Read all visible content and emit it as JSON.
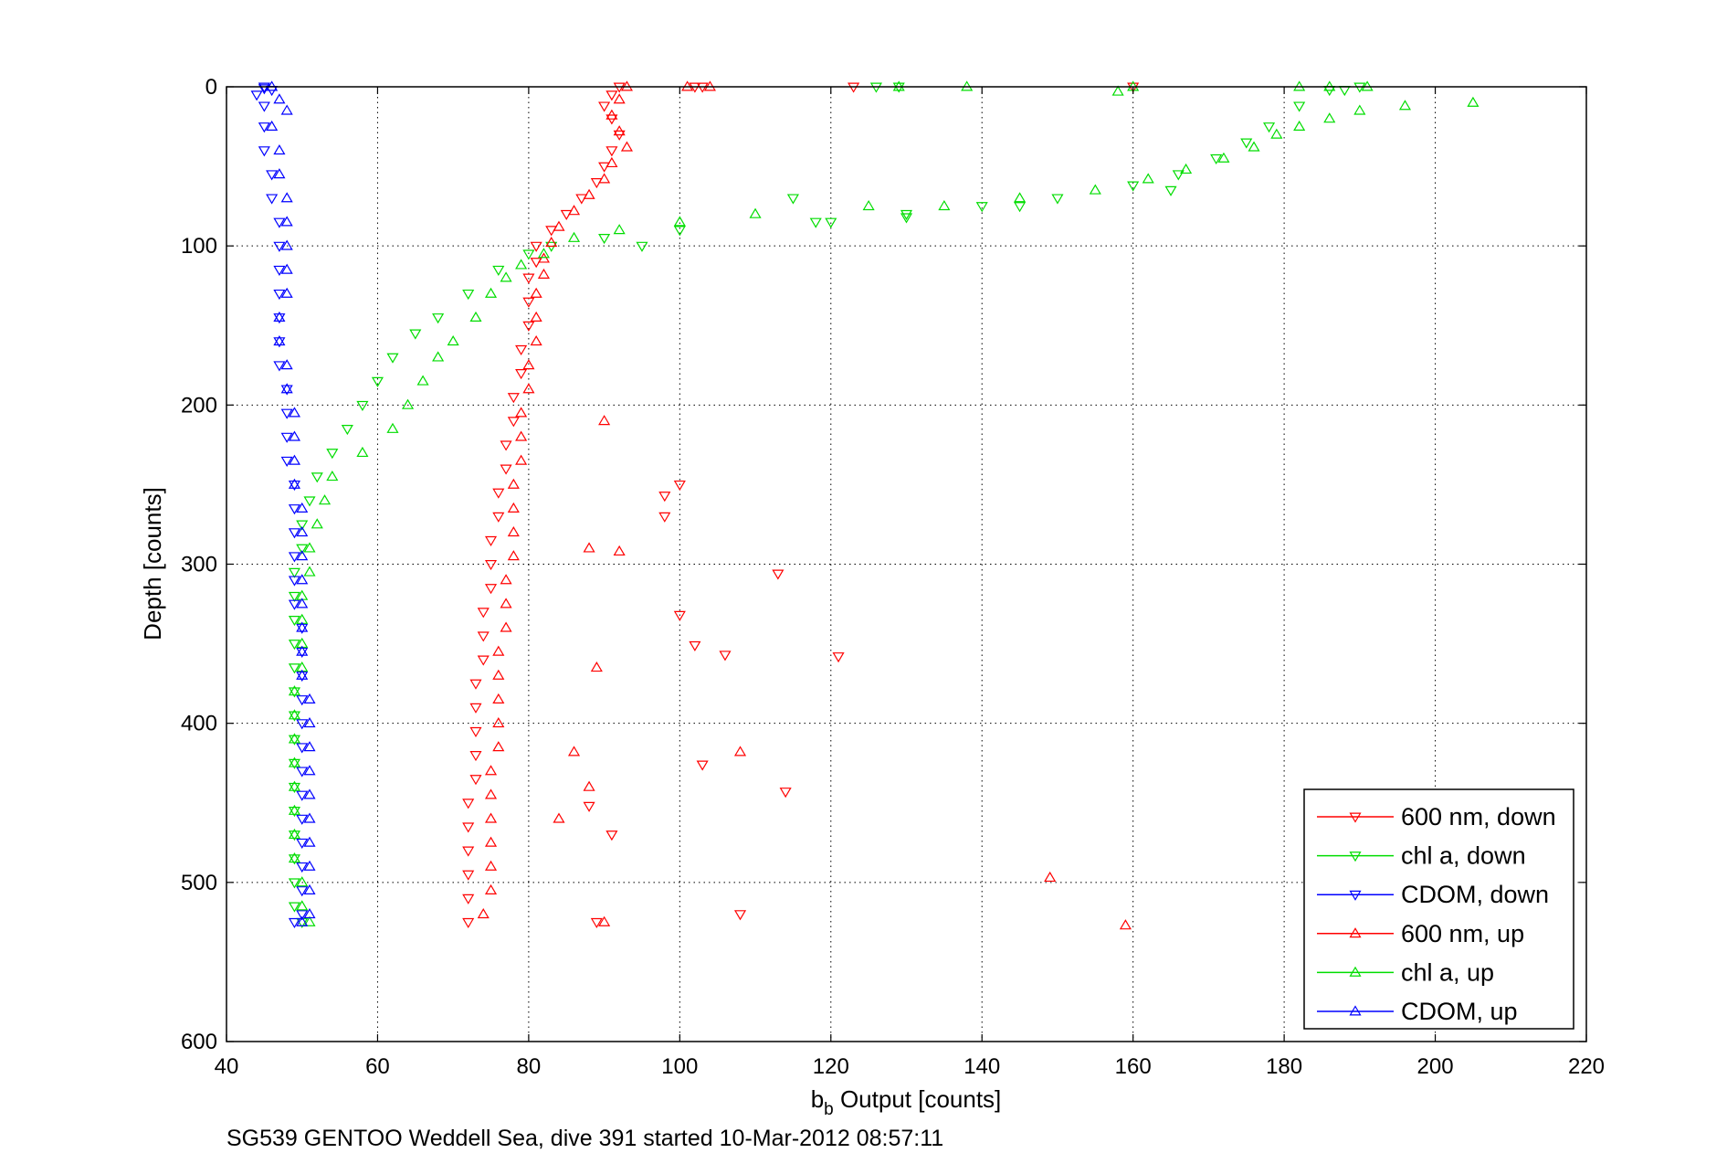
{
  "caption": "SG539 GENTOO Weddell Sea, dive 391 started 10-Mar-2012 08:57:11",
  "chart_data": {
    "type": "scatter",
    "xlabel_base": "b",
    "xlabel_sub": "b",
    "xlabel_rest": " Output [counts]",
    "ylabel": "Depth [counts]",
    "xlim": [
      40,
      220
    ],
    "ylim": [
      0,
      600
    ],
    "y_reversed": true,
    "grid": true,
    "legend_position": "bottom-right",
    "xticks": [
      "40",
      "60",
      "80",
      "100",
      "120",
      "140",
      "160",
      "180",
      "200",
      "220"
    ],
    "yticks": [
      "0",
      "100",
      "200",
      "300",
      "400",
      "500",
      "600"
    ],
    "series": [
      {
        "name": "600 nm, down",
        "color": "#ff0000",
        "marker": "triangle-down",
        "points": [
          [
            92,
            0
          ],
          [
            91,
            5
          ],
          [
            90,
            12
          ],
          [
            91,
            20
          ],
          [
            92,
            30
          ],
          [
            91,
            40
          ],
          [
            90,
            50
          ],
          [
            89,
            60
          ],
          [
            87,
            70
          ],
          [
            85,
            80
          ],
          [
            83,
            90
          ],
          [
            81,
            100
          ],
          [
            81,
            110
          ],
          [
            80,
            120
          ],
          [
            80,
            135
          ],
          [
            80,
            150
          ],
          [
            79,
            165
          ],
          [
            79,
            180
          ],
          [
            78,
            195
          ],
          [
            78,
            210
          ],
          [
            77,
            225
          ],
          [
            77,
            240
          ],
          [
            76,
            255
          ],
          [
            76,
            270
          ],
          [
            75,
            285
          ],
          [
            75,
            300
          ],
          [
            75,
            315
          ],
          [
            74,
            330
          ],
          [
            74,
            345
          ],
          [
            74,
            360
          ],
          [
            73,
            375
          ],
          [
            73,
            390
          ],
          [
            73,
            405
          ],
          [
            73,
            420
          ],
          [
            73,
            435
          ],
          [
            72,
            450
          ],
          [
            72,
            465
          ],
          [
            72,
            480
          ],
          [
            72,
            495
          ],
          [
            72,
            510
          ],
          [
            72,
            525
          ],
          [
            102,
            0
          ],
          [
            103,
            0
          ],
          [
            123,
            0
          ],
          [
            160,
            0
          ],
          [
            100,
            250
          ],
          [
            98,
            257
          ],
          [
            98,
            270
          ],
          [
            113,
            306
          ],
          [
            100,
            332
          ],
          [
            102,
            351
          ],
          [
            106,
            357
          ],
          [
            121,
            358
          ],
          [
            103,
            426
          ],
          [
            114,
            443
          ],
          [
            108,
            520
          ],
          [
            89,
            525
          ],
          [
            91,
            470
          ],
          [
            88,
            452
          ]
        ]
      },
      {
        "name": "chl a, down",
        "color": "#00dd00",
        "marker": "triangle-down",
        "points": [
          [
            190,
            0
          ],
          [
            186,
            2
          ],
          [
            182,
            12
          ],
          [
            178,
            25
          ],
          [
            175,
            35
          ],
          [
            171,
            45
          ],
          [
            166,
            55
          ],
          [
            160,
            62
          ],
          [
            150,
            70
          ],
          [
            140,
            75
          ],
          [
            130,
            80
          ],
          [
            120,
            85
          ],
          [
            100,
            90
          ],
          [
            90,
            95
          ],
          [
            83,
            100
          ],
          [
            80,
            105
          ],
          [
            76,
            115
          ],
          [
            72,
            130
          ],
          [
            68,
            145
          ],
          [
            65,
            155
          ],
          [
            62,
            170
          ],
          [
            60,
            185
          ],
          [
            58,
            200
          ],
          [
            56,
            215
          ],
          [
            54,
            230
          ],
          [
            52,
            245
          ],
          [
            51,
            260
          ],
          [
            50,
            275
          ],
          [
            50,
            290
          ],
          [
            49,
            305
          ],
          [
            49,
            320
          ],
          [
            49,
            335
          ],
          [
            49,
            350
          ],
          [
            49,
            365
          ],
          [
            49,
            380
          ],
          [
            49,
            395
          ],
          [
            49,
            410
          ],
          [
            49,
            425
          ],
          [
            49,
            440
          ],
          [
            49,
            455
          ],
          [
            49,
            470
          ],
          [
            49,
            485
          ],
          [
            49,
            500
          ],
          [
            49,
            515
          ],
          [
            50,
            525
          ],
          [
            126,
            0
          ],
          [
            129,
            0
          ],
          [
            115,
            70
          ],
          [
            118,
            85
          ],
          [
            95,
            100
          ],
          [
            130,
            82
          ],
          [
            145,
            75
          ],
          [
            165,
            65
          ],
          [
            188,
            2
          ]
        ]
      },
      {
        "name": "CDOM, down",
        "color": "#0000ff",
        "marker": "triangle-down",
        "points": [
          [
            45,
            0
          ],
          [
            44,
            5
          ],
          [
            45,
            12
          ],
          [
            45,
            25
          ],
          [
            45,
            40
          ],
          [
            46,
            55
          ],
          [
            46,
            70
          ],
          [
            47,
            85
          ],
          [
            47,
            100
          ],
          [
            47,
            115
          ],
          [
            47,
            130
          ],
          [
            47,
            145
          ],
          [
            47,
            160
          ],
          [
            47,
            175
          ],
          [
            48,
            190
          ],
          [
            48,
            205
          ],
          [
            48,
            220
          ],
          [
            48,
            235
          ],
          [
            49,
            250
          ],
          [
            49,
            265
          ],
          [
            49,
            280
          ],
          [
            49,
            295
          ],
          [
            49,
            310
          ],
          [
            49,
            325
          ],
          [
            50,
            340
          ],
          [
            50,
            355
          ],
          [
            50,
            370
          ],
          [
            50,
            385
          ],
          [
            50,
            400
          ],
          [
            50,
            415
          ],
          [
            50,
            430
          ],
          [
            50,
            445
          ],
          [
            50,
            460
          ],
          [
            50,
            475
          ],
          [
            50,
            490
          ],
          [
            50,
            505
          ],
          [
            50,
            520
          ],
          [
            49,
            525
          ],
          [
            45,
            1
          ],
          [
            46,
            2
          ]
        ]
      },
      {
        "name": "600 nm, up",
        "color": "#ff0000",
        "marker": "triangle-up",
        "points": [
          [
            93,
            0
          ],
          [
            92,
            8
          ],
          [
            91,
            18
          ],
          [
            92,
            28
          ],
          [
            93,
            38
          ],
          [
            91,
            48
          ],
          [
            90,
            58
          ],
          [
            88,
            68
          ],
          [
            86,
            78
          ],
          [
            84,
            88
          ],
          [
            83,
            98
          ],
          [
            82,
            108
          ],
          [
            82,
            118
          ],
          [
            81,
            130
          ],
          [
            81,
            145
          ],
          [
            81,
            160
          ],
          [
            80,
            175
          ],
          [
            80,
            190
          ],
          [
            79,
            205
          ],
          [
            79,
            220
          ],
          [
            79,
            235
          ],
          [
            78,
            250
          ],
          [
            78,
            265
          ],
          [
            78,
            280
          ],
          [
            78,
            295
          ],
          [
            77,
            310
          ],
          [
            77,
            325
          ],
          [
            77,
            340
          ],
          [
            76,
            355
          ],
          [
            76,
            370
          ],
          [
            76,
            385
          ],
          [
            76,
            400
          ],
          [
            76,
            415
          ],
          [
            75,
            430
          ],
          [
            75,
            445
          ],
          [
            75,
            460
          ],
          [
            75,
            475
          ],
          [
            75,
            490
          ],
          [
            75,
            505
          ],
          [
            74,
            520
          ],
          [
            101,
            0
          ],
          [
            104,
            0
          ],
          [
            88,
            290
          ],
          [
            92,
            292
          ],
          [
            90,
            210
          ],
          [
            89,
            365
          ],
          [
            86,
            418
          ],
          [
            84,
            460
          ],
          [
            88,
            440
          ],
          [
            108,
            418
          ],
          [
            149,
            497
          ],
          [
            159,
            527
          ],
          [
            90,
            525
          ]
        ]
      },
      {
        "name": "chl a, up",
        "color": "#00dd00",
        "marker": "triangle-up",
        "points": [
          [
            205,
            10
          ],
          [
            196,
            12
          ],
          [
            190,
            15
          ],
          [
            186,
            20
          ],
          [
            182,
            25
          ],
          [
            179,
            30
          ],
          [
            176,
            38
          ],
          [
            172,
            45
          ],
          [
            167,
            52
          ],
          [
            162,
            58
          ],
          [
            155,
            65
          ],
          [
            145,
            70
          ],
          [
            135,
            75
          ],
          [
            125,
            75
          ],
          [
            110,
            80
          ],
          [
            100,
            85
          ],
          [
            92,
            90
          ],
          [
            86,
            95
          ],
          [
            82,
            105
          ],
          [
            79,
            112
          ],
          [
            77,
            120
          ],
          [
            75,
            130
          ],
          [
            73,
            145
          ],
          [
            70,
            160
          ],
          [
            68,
            170
          ],
          [
            66,
            185
          ],
          [
            64,
            200
          ],
          [
            62,
            215
          ],
          [
            58,
            230
          ],
          [
            54,
            245
          ],
          [
            53,
            260
          ],
          [
            52,
            275
          ],
          [
            51,
            290
          ],
          [
            51,
            305
          ],
          [
            50,
            320
          ],
          [
            50,
            335
          ],
          [
            50,
            350
          ],
          [
            50,
            365
          ],
          [
            49,
            380
          ],
          [
            49,
            395
          ],
          [
            49,
            410
          ],
          [
            49,
            425
          ],
          [
            49,
            440
          ],
          [
            49,
            455
          ],
          [
            49,
            470
          ],
          [
            49,
            485
          ],
          [
            50,
            500
          ],
          [
            50,
            515
          ],
          [
            51,
            525
          ],
          [
            129,
            0
          ],
          [
            138,
            0
          ],
          [
            158,
            3
          ],
          [
            160,
            0
          ],
          [
            182,
            0
          ],
          [
            186,
            0
          ],
          [
            191,
            0
          ]
        ]
      },
      {
        "name": "CDOM, up",
        "color": "#0000ff",
        "marker": "triangle-up",
        "points": [
          [
            46,
            0
          ],
          [
            47,
            8
          ],
          [
            48,
            15
          ],
          [
            46,
            25
          ],
          [
            47,
            40
          ],
          [
            47,
            55
          ],
          [
            48,
            70
          ],
          [
            48,
            85
          ],
          [
            48,
            100
          ],
          [
            48,
            115
          ],
          [
            48,
            130
          ],
          [
            47,
            145
          ],
          [
            47,
            160
          ],
          [
            48,
            175
          ],
          [
            48,
            190
          ],
          [
            49,
            205
          ],
          [
            49,
            220
          ],
          [
            49,
            235
          ],
          [
            49,
            250
          ],
          [
            50,
            265
          ],
          [
            50,
            280
          ],
          [
            50,
            295
          ],
          [
            50,
            310
          ],
          [
            50,
            325
          ],
          [
            50,
            340
          ],
          [
            50,
            355
          ],
          [
            50,
            370
          ],
          [
            51,
            385
          ],
          [
            51,
            400
          ],
          [
            51,
            415
          ],
          [
            51,
            430
          ],
          [
            51,
            445
          ],
          [
            51,
            460
          ],
          [
            51,
            475
          ],
          [
            51,
            490
          ],
          [
            51,
            505
          ],
          [
            51,
            520
          ],
          [
            50,
            525
          ]
        ]
      }
    ]
  }
}
